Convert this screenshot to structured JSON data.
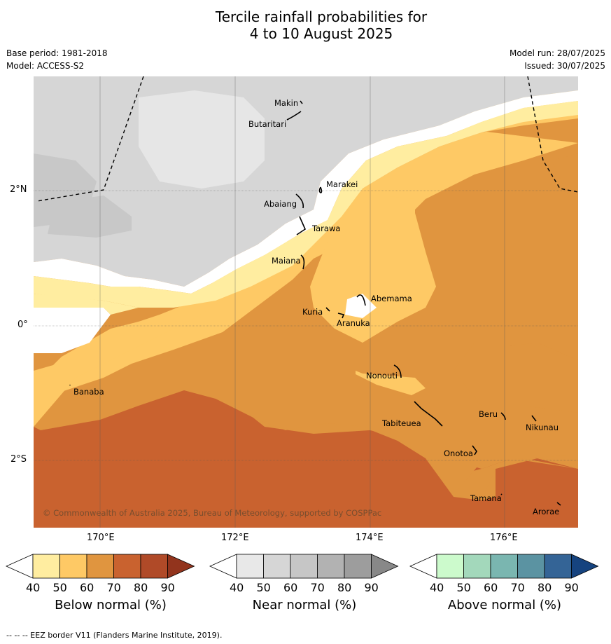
{
  "title": {
    "line1": "Tercile rainfall probabilities for",
    "line2": "4 to 10 August 2025"
  },
  "meta": {
    "base_period": "Base period: 1981-2018",
    "model": "Model: ACCESS-S2",
    "model_run": "Model run: 28/07/2025",
    "issued": "Issued: 30/07/2025"
  },
  "map": {
    "lat_labels": [
      "2°N",
      "0°",
      "2°S"
    ],
    "lon_labels": [
      "170°E",
      "172°E",
      "174°E",
      "176°E"
    ],
    "places": [
      {
        "name": "Makin"
      },
      {
        "name": "Butaritari"
      },
      {
        "name": "Marakei"
      },
      {
        "name": "Abaiang"
      },
      {
        "name": "Tarawa"
      },
      {
        "name": "Maiana"
      },
      {
        "name": "Abemama"
      },
      {
        "name": "Kuria"
      },
      {
        "name": "Aranuka"
      },
      {
        "name": "Nonouti"
      },
      {
        "name": "Banaba"
      },
      {
        "name": "Beru"
      },
      {
        "name": "Tabiteuea"
      },
      {
        "name": "Nikunau"
      },
      {
        "name": "Onotoa"
      },
      {
        "name": "Tamana"
      },
      {
        "name": "Arorae"
      }
    ],
    "copyright": "© Commonwealth of Australia 2025, Bureau of Meteorology, supported by COSPPac"
  },
  "colorbars": [
    {
      "label": "Below normal (%)",
      "ticks": [
        "40",
        "50",
        "60",
        "70",
        "80",
        "90"
      ],
      "colors": [
        "#ffffff",
        "#ffeda0",
        "#fec965",
        "#e0953f",
        "#c9622f",
        "#b04a28",
        "#92341d"
      ]
    },
    {
      "label": "Near normal (%)",
      "ticks": [
        "40",
        "50",
        "60",
        "70",
        "80",
        "90"
      ],
      "colors": [
        "#ffffff",
        "#e8e8e8",
        "#d6d6d6",
        "#c6c6c6",
        "#b2b2b2",
        "#9d9d9d",
        "#888888"
      ]
    },
    {
      "label": "Above normal (%)",
      "ticks": [
        "40",
        "50",
        "60",
        "70",
        "80",
        "90"
      ],
      "colors": [
        "#ffffff",
        "#ccfacc",
        "#a3d8bb",
        "#7ab6b0",
        "#5b93a2",
        "#346496",
        "#16437f"
      ]
    }
  ],
  "footer": "--  --  -- EEZ border V11 (Flanders Marine Institute, 2019).",
  "colors": {
    "below_50": "#ffeda0",
    "below_60": "#fec965",
    "below_70": "#e0953f",
    "below_80": "#c9622f",
    "near_50": "#e6e6e6",
    "near_60": "#d6d6d6",
    "near_70": "#c8c8c8"
  }
}
